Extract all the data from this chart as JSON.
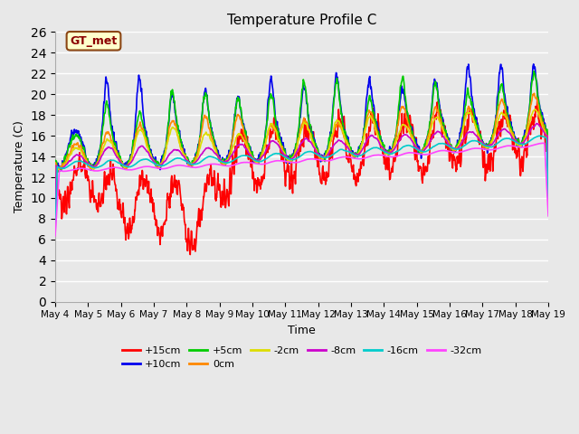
{
  "title": "Temperature Profile C",
  "xlabel": "Time",
  "ylabel": "Temperature (C)",
  "ylim": [
    0,
    26
  ],
  "yticks": [
    0,
    2,
    4,
    6,
    8,
    10,
    12,
    14,
    16,
    18,
    20,
    22,
    24,
    26
  ],
  "x_tick_labels": [
    "May 4",
    "May 5",
    "May 6",
    "May 7",
    "May 8",
    "May 9",
    "May 10",
    "May 11",
    "May 12",
    "May 13",
    "May 14",
    "May 15",
    "May 16",
    "May 17",
    "May 18",
    "May 19"
  ],
  "series": [
    {
      "label": "+15cm",
      "color": "#ff0000",
      "linewidth": 1.2,
      "zorder": 2
    },
    {
      "label": "+10cm",
      "color": "#0000ee",
      "linewidth": 1.2,
      "zorder": 3
    },
    {
      "label": "+5cm",
      "color": "#00cc00",
      "linewidth": 1.2,
      "zorder": 3
    },
    {
      "label": "0cm",
      "color": "#ff8800",
      "linewidth": 1.2,
      "zorder": 4
    },
    {
      "label": "-2cm",
      "color": "#dddd00",
      "linewidth": 1.2,
      "zorder": 4
    },
    {
      "label": "-8cm",
      "color": "#cc00cc",
      "linewidth": 1.2,
      "zorder": 4
    },
    {
      "label": "-16cm",
      "color": "#00cccc",
      "linewidth": 1.2,
      "zorder": 4
    },
    {
      "label": "-32cm",
      "color": "#ff44ff",
      "linewidth": 1.2,
      "zorder": 4
    }
  ],
  "annotation_text": "GT_met",
  "plot_bg_color": "#e8e8e8",
  "fig_bg_color": "#e8e8e8",
  "grid_color": "#ffffff",
  "legend_ncol_row1": 6,
  "legend_ncol_row2": 2
}
